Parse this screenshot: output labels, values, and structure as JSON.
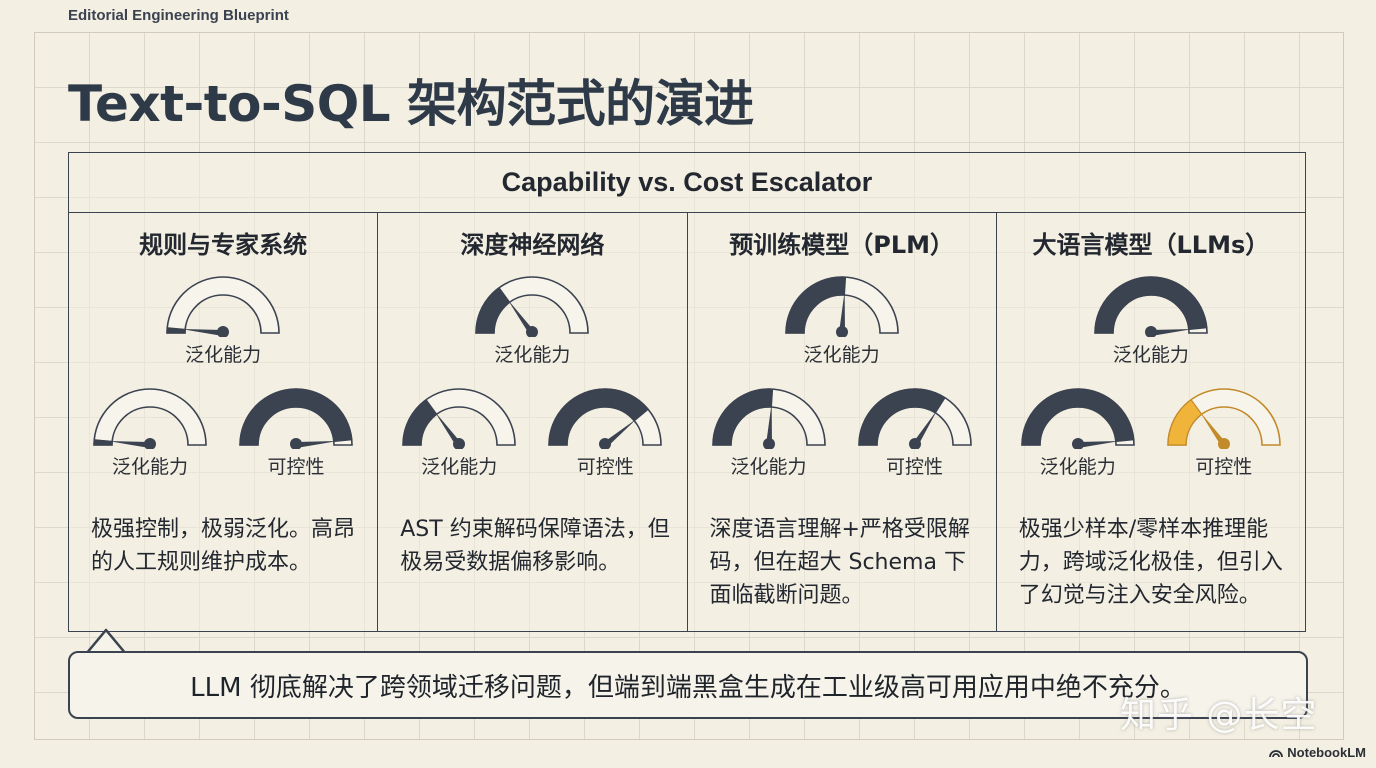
{
  "header": {
    "kicker": "Editorial Engineering Blueprint",
    "title": "Text-to-SQL 架构范式的演进"
  },
  "panel": {
    "title": "Capability vs. Cost Escalator",
    "columns": [
      {
        "title": "规则与专家系统",
        "top_gauge": {
          "label": "泛化能力",
          "value": 0.03,
          "style": "dark"
        },
        "left_gauge": {
          "label": "泛化能力",
          "value": 0.03,
          "style": "dark"
        },
        "right_gauge": {
          "label": "可控性",
          "value": 0.97,
          "style": "dark"
        },
        "description": "极强控制，极弱泛化。高昂的人工规则维护成本。"
      },
      {
        "title": "深度神经网络",
        "top_gauge": {
          "label": "泛化能力",
          "value": 0.3,
          "style": "dark"
        },
        "left_gauge": {
          "label": "泛化能力",
          "value": 0.3,
          "style": "dark"
        },
        "right_gauge": {
          "label": "可控性",
          "value": 0.78,
          "style": "dark"
        },
        "description": "AST 约束解码保障语法，但极易受数据偏移影响。"
      },
      {
        "title": "预训练模型（PLM）",
        "top_gauge": {
          "label": "泛化能力",
          "value": 0.52,
          "style": "dark"
        },
        "left_gauge": {
          "label": "泛化能力",
          "value": 0.52,
          "style": "dark"
        },
        "right_gauge": {
          "label": "可控性",
          "value": 0.68,
          "style": "dark"
        },
        "description": "深度语言理解+严格受限解码，但在超大 Schema 下面临截断问题。"
      },
      {
        "title": "大语言模型（LLMs）",
        "top_gauge": {
          "label": "泛化能力",
          "value": 0.97,
          "style": "dark"
        },
        "left_gauge": {
          "label": "泛化能力",
          "value": 0.97,
          "style": "dark"
        },
        "right_gauge": {
          "label": "可控性",
          "value": 0.3,
          "style": "amber"
        },
        "description": "极强少样本/零样本推理能力，跨域泛化极佳，但引入了幻觉与注入安全风险。"
      }
    ]
  },
  "callout": {
    "text": "LLM 彻底解决了跨领域迁移问题，但端到端黑盒生成在工业级高可用应用中绝不充分。"
  },
  "watermark": "知乎 @长空",
  "brand": "NotebookLM",
  "colors": {
    "background": "#f3efe2",
    "ink": "#3b4250",
    "amber": "#f0b43a"
  }
}
